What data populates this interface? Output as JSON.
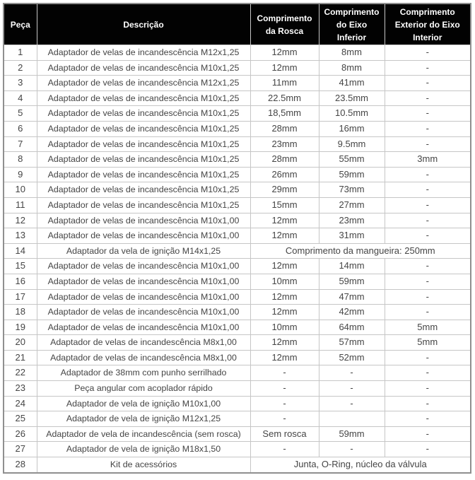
{
  "table": {
    "headers": [
      "Peça",
      "Descrição",
      "Comprimento da Rosca",
      "Comprimento do Eixo Inferior",
      "Comprimento Exterior do Eixo Interior"
    ],
    "rows": [
      {
        "part": "1",
        "desc": "Adaptador de velas de incandescência M12x1,25",
        "rosca": "12mm",
        "eixo": "8mm",
        "ext": "-"
      },
      {
        "part": "2",
        "desc": "Adaptador de velas de incandescência M10x1,25",
        "rosca": "12mm",
        "eixo": "8mm",
        "ext": "-"
      },
      {
        "part": "3",
        "desc": "Adaptador de velas de incandescência M12x1,25",
        "rosca": "11mm",
        "eixo": "41mm",
        "ext": "-"
      },
      {
        "part": "4",
        "desc": "Adaptador de velas de incandescência M10x1,25",
        "rosca": "22.5mm",
        "eixo": "23.5mm",
        "ext": "-"
      },
      {
        "part": "5",
        "desc": "Adaptador de velas de incandescência M10x1,25",
        "rosca": "18,5mm",
        "eixo": "10.5mm",
        "ext": "-"
      },
      {
        "part": "6",
        "desc": "Adaptador de velas de incandescência M10x1,25",
        "rosca": "28mm",
        "eixo": "16mm",
        "ext": "-"
      },
      {
        "part": "7",
        "desc": "Adaptador de velas de incandescência M10x1,25",
        "rosca": "23mm",
        "eixo": "9.5mm",
        "ext": "-"
      },
      {
        "part": "8",
        "desc": "Adaptador de velas de incandescência M10x1,25",
        "rosca": "28mm",
        "eixo": "55mm",
        "ext": "3mm"
      },
      {
        "part": "9",
        "desc": "Adaptador de velas de incandescência M10x1,25",
        "rosca": "26mm",
        "eixo": "59mm",
        "ext": "-"
      },
      {
        "part": "10",
        "desc": "Adaptador de velas de incandescência M10x1,25",
        "rosca": "29mm",
        "eixo": "73mm",
        "ext": "-"
      },
      {
        "part": "11",
        "desc": "Adaptador de velas de incandescência M10x1,25",
        "rosca": "15mm",
        "eixo": "27mm",
        "ext": "-"
      },
      {
        "part": "12",
        "desc": "Adaptador de velas de incandescência M10x1,00",
        "rosca": "12mm",
        "eixo": "23mm",
        "ext": "-"
      },
      {
        "part": "13",
        "desc": "Adaptador de velas de incandescência M10x1,00",
        "rosca": "12mm",
        "eixo": "31mm",
        "ext": "-"
      },
      {
        "part": "14",
        "desc": "Adaptador da vela de ignição M14x1,25",
        "merged": "Comprimento da mangueira: 250mm"
      },
      {
        "part": "15",
        "desc": "Adaptador de velas de incandescência M10x1,00",
        "rosca": "12mm",
        "eixo": "14mm",
        "ext": "-"
      },
      {
        "part": "16",
        "desc": "Adaptador de velas de incandescência M10x1,00",
        "rosca": "10mm",
        "eixo": "59mm",
        "ext": "-"
      },
      {
        "part": "17",
        "desc": "Adaptador de velas de incandescência M10x1,00",
        "rosca": "12mm",
        "eixo": "47mm",
        "ext": "-"
      },
      {
        "part": "18",
        "desc": "Adaptador de velas de incandescência M10x1,00",
        "rosca": "12mm",
        "eixo": "42mm",
        "ext": "-"
      },
      {
        "part": "19",
        "desc": "Adaptador de velas de incandescência M10x1,00",
        "rosca": "10mm",
        "eixo": "64mm",
        "ext": "5mm"
      },
      {
        "part": "20",
        "desc": "Adaptador de velas de incandescência M8x1,00",
        "rosca": "12mm",
        "eixo": "57mm",
        "ext": "5mm"
      },
      {
        "part": "21",
        "desc": "Adaptador de velas de incandescência M8x1,00",
        "rosca": "12mm",
        "eixo": "52mm",
        "ext": "-"
      },
      {
        "part": "22",
        "desc": "Adaptador de 38mm com punho serrilhado",
        "rosca": "-",
        "eixo": "-",
        "ext": "-"
      },
      {
        "part": "23",
        "desc": "Peça angular com acoplador rápido",
        "rosca": "-",
        "eixo": "-",
        "ext": "-"
      },
      {
        "part": "24",
        "desc": "Adaptador de vela de ignição M10x1,00",
        "rosca": "-",
        "eixo": "-",
        "ext": "-"
      },
      {
        "part": "25",
        "desc": "Adaptador de vela de ignição M12x1,25",
        "rosca": "-",
        "eixo": "",
        "ext": "-"
      },
      {
        "part": "26",
        "desc": "Adaptador de vela de incandescência (sem rosca)",
        "rosca": "Sem rosca",
        "eixo": "59mm",
        "ext": "-"
      },
      {
        "part": "27",
        "desc": "Adaptador de vela de ignição M18x1,50",
        "rosca": "-",
        "eixo": "-",
        "ext": "-"
      },
      {
        "part": "28",
        "desc": "Kit de acessórios",
        "merged": "Junta, O-Ring, núcleo da válvula"
      }
    ],
    "colors": {
      "header_bg": "#020202",
      "header_text": "#ffffff",
      "body_text": "#454545",
      "inner_border": "#c6c6c6",
      "outer_border": "#8f8f8f"
    }
  }
}
